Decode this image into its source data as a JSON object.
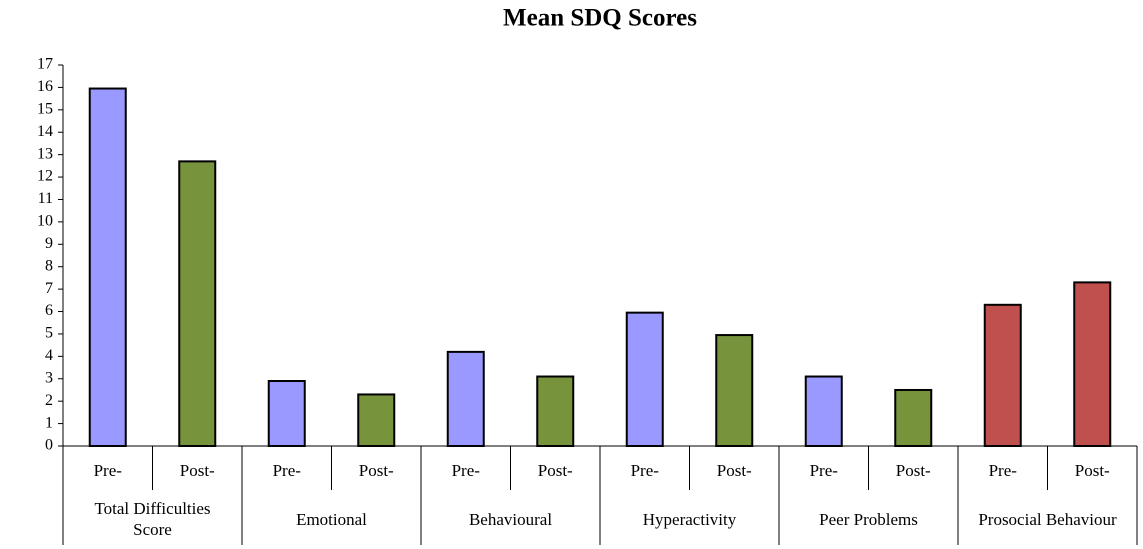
{
  "chart_data": {
    "type": "bar",
    "title": "Mean SDQ Scores",
    "groups": [
      {
        "name": "Total Difficulties Score",
        "categories": [
          "Pre-",
          "Post-"
        ],
        "values": [
          15.95,
          12.7
        ],
        "colors": [
          "#9999ff",
          "#77933c"
        ]
      },
      {
        "name": "Emotional",
        "categories": [
          "Pre-",
          "Post-"
        ],
        "values": [
          2.9,
          2.3
        ],
        "colors": [
          "#9999ff",
          "#77933c"
        ]
      },
      {
        "name": "Behavioural",
        "categories": [
          "Pre-",
          "Post-"
        ],
        "values": [
          4.2,
          3.1
        ],
        "colors": [
          "#9999ff",
          "#77933c"
        ]
      },
      {
        "name": "Hyperactivity",
        "categories": [
          "Pre-",
          "Post-"
        ],
        "values": [
          5.95,
          4.95
        ],
        "colors": [
          "#9999ff",
          "#77933c"
        ]
      },
      {
        "name": "Peer Problems",
        "categories": [
          "Pre-",
          "Post-"
        ],
        "values": [
          3.1,
          2.5
        ],
        "colors": [
          "#9999ff",
          "#77933c"
        ]
      },
      {
        "name": "Prosocial Behaviour",
        "categories": [
          "Pre-",
          "Post-"
        ],
        "values": [
          6.3,
          7.3
        ],
        "colors": [
          "#c0504d",
          "#c0504d"
        ]
      }
    ],
    "ylim": [
      0,
      17
    ],
    "yticks": [
      0,
      1,
      2,
      3,
      4,
      5,
      6,
      7,
      8,
      9,
      10,
      11,
      12,
      13,
      14,
      15,
      16,
      17
    ],
    "grid": false
  }
}
